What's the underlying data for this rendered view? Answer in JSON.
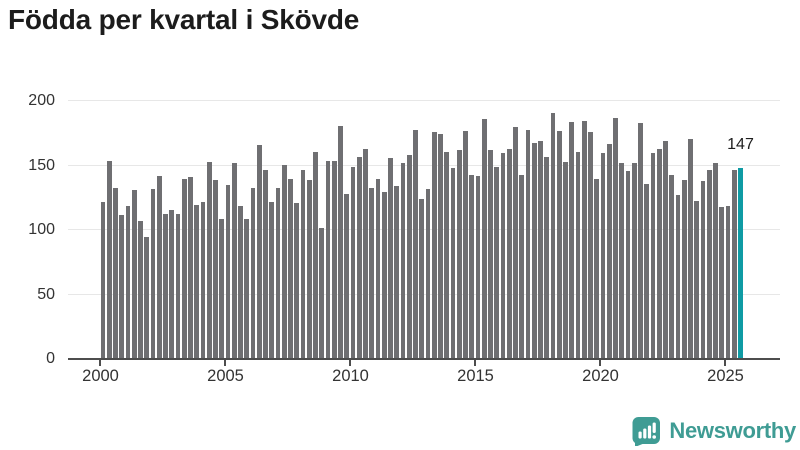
{
  "title": "Födda per kvartal i Skövde",
  "annotation": {
    "last_value_label": "147"
  },
  "axes": {
    "y_ticks": [
      0,
      50,
      100,
      150,
      200
    ],
    "y_max": 200,
    "x_tick_years": [
      2000,
      2005,
      2010,
      2015,
      2020,
      2025
    ]
  },
  "colors": {
    "bar": "#6f6f72",
    "highlight": "#0f9ba4",
    "grid": "#e7e7e7",
    "axis": "#4d4d4d",
    "title_text": "#1c1c1c",
    "tick_text": "#333333",
    "logo": "#3f9c94"
  },
  "branding": {
    "name": "Newsworthy"
  },
  "chart_data": {
    "type": "bar",
    "title": "Födda per kvartal i Skövde",
    "x_unit": "quarter",
    "x_start": "2000 Q1",
    "x_end": "2025 Q3",
    "ylim": [
      0,
      200
    ],
    "grid": "horizontal",
    "xlabel": "",
    "ylabel": "",
    "legend": "none",
    "highlight": {
      "index": 102,
      "value": 147,
      "label": "147",
      "color": "#0f9ba4"
    },
    "values": [
      121,
      153,
      132,
      111,
      118,
      130,
      106,
      94,
      131,
      141,
      112,
      115,
      112,
      139,
      140,
      119,
      121,
      152,
      138,
      108,
      134,
      151,
      118,
      108,
      132,
      165,
      146,
      121,
      132,
      150,
      139,
      120,
      146,
      138,
      160,
      101,
      153,
      153,
      180,
      127,
      148,
      156,
      162,
      132,
      139,
      129,
      155,
      133,
      151,
      157,
      177,
      123,
      131,
      175,
      174,
      160,
      147,
      161,
      176,
      142,
      141,
      185,
      161,
      148,
      159,
      162,
      179,
      142,
      177,
      167,
      168,
      156,
      190,
      176,
      152,
      183,
      160,
      184,
      175,
      139,
      159,
      166,
      186,
      151,
      145,
      151,
      182,
      135,
      159,
      162,
      168,
      142,
      126,
      138,
      170,
      122,
      137,
      146,
      151,
      117,
      118,
      146,
      147
    ]
  }
}
